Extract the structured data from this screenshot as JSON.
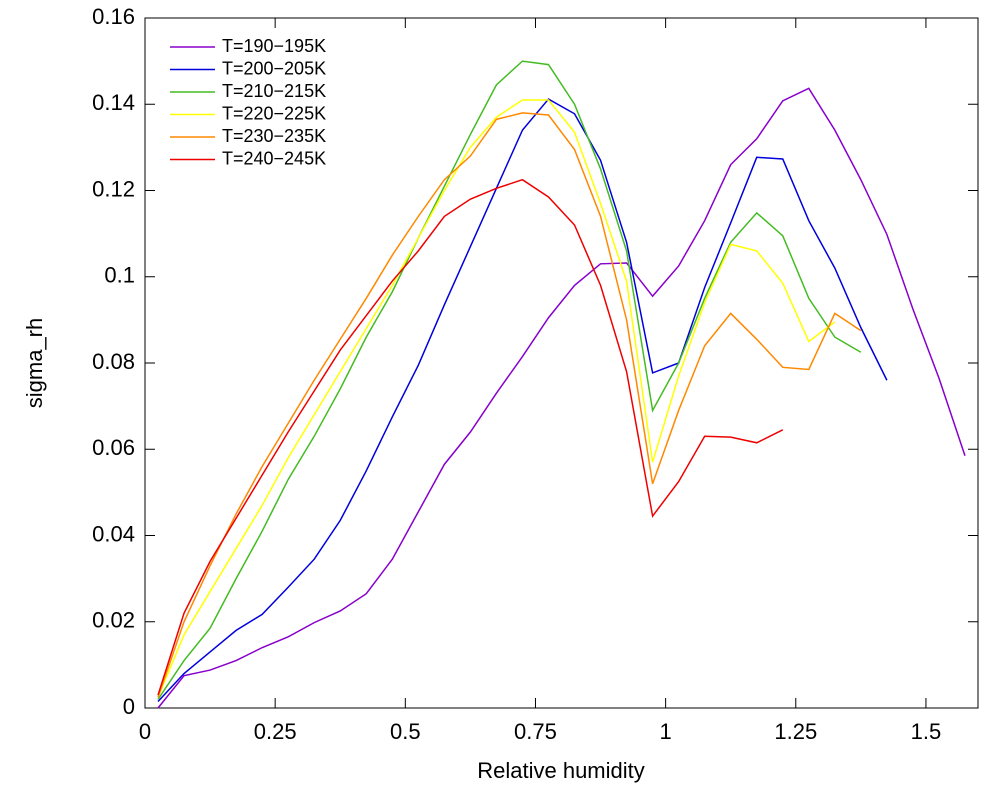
{
  "chart_data": {
    "type": "line",
    "xlabel": "Relative humidity",
    "ylabel": "sigma_rh",
    "xlim": [
      0,
      1.6
    ],
    "ylim": [
      0,
      0.16
    ],
    "xticks": [
      0,
      0.25,
      0.5,
      0.75,
      1,
      1.25,
      1.5
    ],
    "yticks": [
      0,
      0.02,
      0.04,
      0.06,
      0.08,
      0.1,
      0.12,
      0.14,
      0.16
    ],
    "legend": "upper-left",
    "x": [
      0.025,
      0.075,
      0.125,
      0.175,
      0.225,
      0.275,
      0.325,
      0.375,
      0.425,
      0.475,
      0.525,
      0.575,
      0.625,
      0.675,
      0.725,
      0.775,
      0.825,
      0.875,
      0.925,
      0.975,
      1.025,
      1.075,
      1.125,
      1.175,
      1.225,
      1.275,
      1.325,
      1.375,
      1.425,
      1.475,
      1.525,
      1.575
    ],
    "series": [
      {
        "name": "T=190−195K",
        "color": "#8800cc",
        "values": [
          0.0,
          0.0075,
          0.0088,
          0.011,
          0.014,
          0.0165,
          0.0198,
          0.0225,
          0.0265,
          0.0345,
          0.0455,
          0.0565,
          0.064,
          0.073,
          0.0815,
          0.0905,
          0.098,
          0.103,
          0.1032,
          0.0955,
          0.1025,
          0.113,
          0.126,
          0.132,
          0.1408,
          0.1437,
          0.134,
          0.1225,
          0.1098,
          0.0925,
          0.0765,
          0.0585
        ]
      },
      {
        "name": "T=200−205K",
        "color": "#0000dd",
        "values": [
          0.0015,
          0.008,
          0.013,
          0.018,
          0.0217,
          0.028,
          0.0345,
          0.0435,
          0.055,
          0.0675,
          0.0795,
          0.0935,
          0.107,
          0.1205,
          0.134,
          0.1412,
          0.1378,
          0.127,
          0.108,
          0.0777,
          0.08,
          0.0975,
          0.1125,
          0.1277,
          0.1273,
          0.113,
          0.102,
          0.0882,
          0.076,
          null,
          null,
          null
        ]
      },
      {
        "name": "T=210−215K",
        "color": "#44bb22",
        "values": [
          0.002,
          0.011,
          0.0185,
          0.03,
          0.041,
          0.053,
          0.063,
          0.074,
          0.086,
          0.0965,
          0.109,
          0.121,
          0.133,
          0.1445,
          0.15,
          0.1492,
          0.14,
          0.125,
          0.106,
          0.069,
          0.08,
          0.095,
          0.108,
          0.1148,
          0.1095,
          0.095,
          0.086,
          0.0825,
          null,
          null,
          null,
          null
        ]
      },
      {
        "name": "T=220−225K",
        "color": "#ffff00",
        "values": [
          0.0025,
          0.017,
          0.027,
          0.037,
          0.047,
          0.058,
          0.068,
          0.078,
          0.088,
          0.098,
          0.109,
          0.12,
          0.13,
          0.137,
          0.141,
          0.141,
          0.1335,
          0.117,
          0.099,
          0.057,
          0.077,
          0.094,
          0.1075,
          0.106,
          0.0985,
          0.085,
          0.0895,
          null,
          null,
          null,
          null,
          null
        ]
      },
      {
        "name": "T=230−235K",
        "color": "#ff8800",
        "values": [
          0.0025,
          0.02,
          0.033,
          0.045,
          0.056,
          0.066,
          0.076,
          0.0855,
          0.095,
          0.105,
          0.114,
          0.1225,
          0.128,
          0.1365,
          0.138,
          0.1375,
          0.1295,
          0.114,
          0.09,
          0.052,
          0.069,
          0.084,
          0.0915,
          0.0855,
          0.079,
          0.0785,
          0.0915,
          0.0875,
          null,
          null,
          null,
          null
        ]
      },
      {
        "name": "T=240−245K",
        "color": "#ee0000",
        "values": [
          0.003,
          0.022,
          0.034,
          0.044,
          0.054,
          0.064,
          0.0735,
          0.083,
          0.091,
          0.099,
          0.106,
          0.114,
          0.118,
          0.1205,
          0.1225,
          0.1185,
          0.112,
          0.098,
          0.078,
          0.0445,
          0.0525,
          0.063,
          0.0628,
          0.0615,
          0.0645,
          null,
          null,
          null,
          null,
          null,
          null,
          null
        ]
      }
    ]
  }
}
